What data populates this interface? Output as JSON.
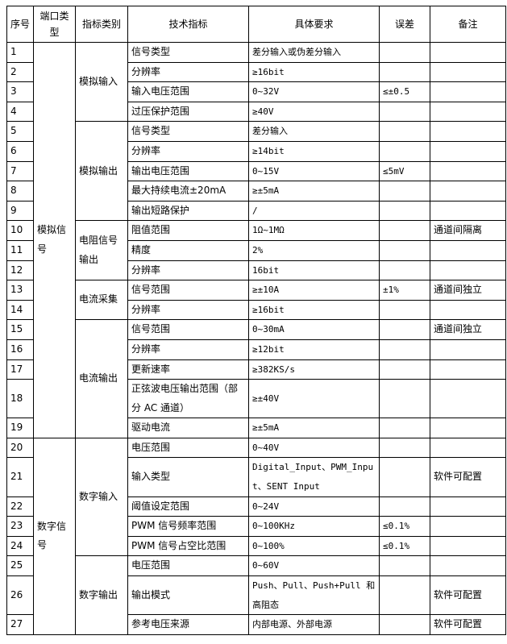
{
  "headers": [
    "序号",
    "端口类型",
    "指标类别",
    "技术指标",
    "具体要求",
    "误差",
    "备注"
  ],
  "ports": [
    {
      "name": "模拟信号",
      "groups": [
        {
          "name": "模拟输入",
          "rows": [
            {
              "no": 1,
              "spec": "信号类型",
              "req": "差分输入或伪差分输入"
            },
            {
              "no": 2,
              "spec": "分辨率",
              "req": "≥16bit"
            },
            {
              "no": 3,
              "spec": "输入电压范围",
              "req": "0~32V",
              "err": "≤±0.5"
            },
            {
              "no": 4,
              "spec": "过压保护范围",
              "req": "≥40V"
            }
          ]
        },
        {
          "name": "模拟输出",
          "rows": [
            {
              "no": 5,
              "spec": "信号类型",
              "req": "差分输入"
            },
            {
              "no": 6,
              "spec": "分辨率",
              "req": "≥14bit"
            },
            {
              "no": 7,
              "spec": "输出电压范围",
              "req": "0~15V",
              "err": "≤5mV"
            },
            {
              "no": 8,
              "spec": "最大持续电流±20mA",
              "req": "≥±5mA"
            },
            {
              "no": 9,
              "spec": "输出短路保护",
              "req": "/"
            }
          ]
        },
        {
          "name": "电阻信号输出",
          "rows": [
            {
              "no": 10,
              "spec": "阻值范围",
              "req": "1Ω~1MΩ",
              "note": "通道间隔离"
            },
            {
              "no": 11,
              "spec": "精度",
              "req": "2%"
            },
            {
              "no": 12,
              "spec": "分辨率",
              "req": "16bit"
            }
          ]
        },
        {
          "name": "电流采集",
          "rows": [
            {
              "no": 13,
              "spec": "信号范围",
              "req": "≥±10A",
              "err": "±1%",
              "note": "通道间独立"
            },
            {
              "no": 14,
              "spec": "分辨率",
              "req": "≥16bit"
            }
          ]
        },
        {
          "name": "电流输出",
          "rows": [
            {
              "no": 15,
              "spec": "信号范围",
              "req": "0~30mA",
              "note": "通道间独立"
            },
            {
              "no": 16,
              "spec": "分辨率",
              "req": "≥12bit"
            },
            {
              "no": 17,
              "spec": "更新速率",
              "req": "≥382KS/s"
            },
            {
              "no": 18,
              "spec": "正弦波电压输出范围（部分 AC 通道）",
              "req": "≥±40V"
            },
            {
              "no": 19,
              "spec": "驱动电流",
              "req": "≥±5mA"
            }
          ]
        }
      ]
    },
    {
      "name": "数字信号",
      "groups": [
        {
          "name": "数字输入",
          "rows": [
            {
              "no": 20,
              "spec": "电压范围",
              "req": "0~40V"
            },
            {
              "no": 21,
              "spec": "输入类型",
              "req": "Digital_Input、PWM_Input、SENT Input",
              "note": "软件可配置"
            },
            {
              "no": 22,
              "spec": "阈值设定范围",
              "req": "0~24V"
            },
            {
              "no": 23,
              "spec": "PWM 信号频率范围",
              "req": "0~100KHz",
              "err": "≤0.1%"
            },
            {
              "no": 24,
              "spec": "PWM 信号占空比范围",
              "req": "0~100%",
              "err": "≤0.1%"
            }
          ]
        },
        {
          "name": "数字输出",
          "rows": [
            {
              "no": 25,
              "spec": "电压范围",
              "req": "0~60V"
            },
            {
              "no": 26,
              "spec": "输出模式",
              "req": "Push、Pull、Push+Pull 和高阻态",
              "note": "软件可配置"
            },
            {
              "no": 27,
              "spec": "参考电压来源",
              "req": "内部电源、外部电源",
              "note": "软件可配置"
            }
          ]
        }
      ]
    }
  ]
}
